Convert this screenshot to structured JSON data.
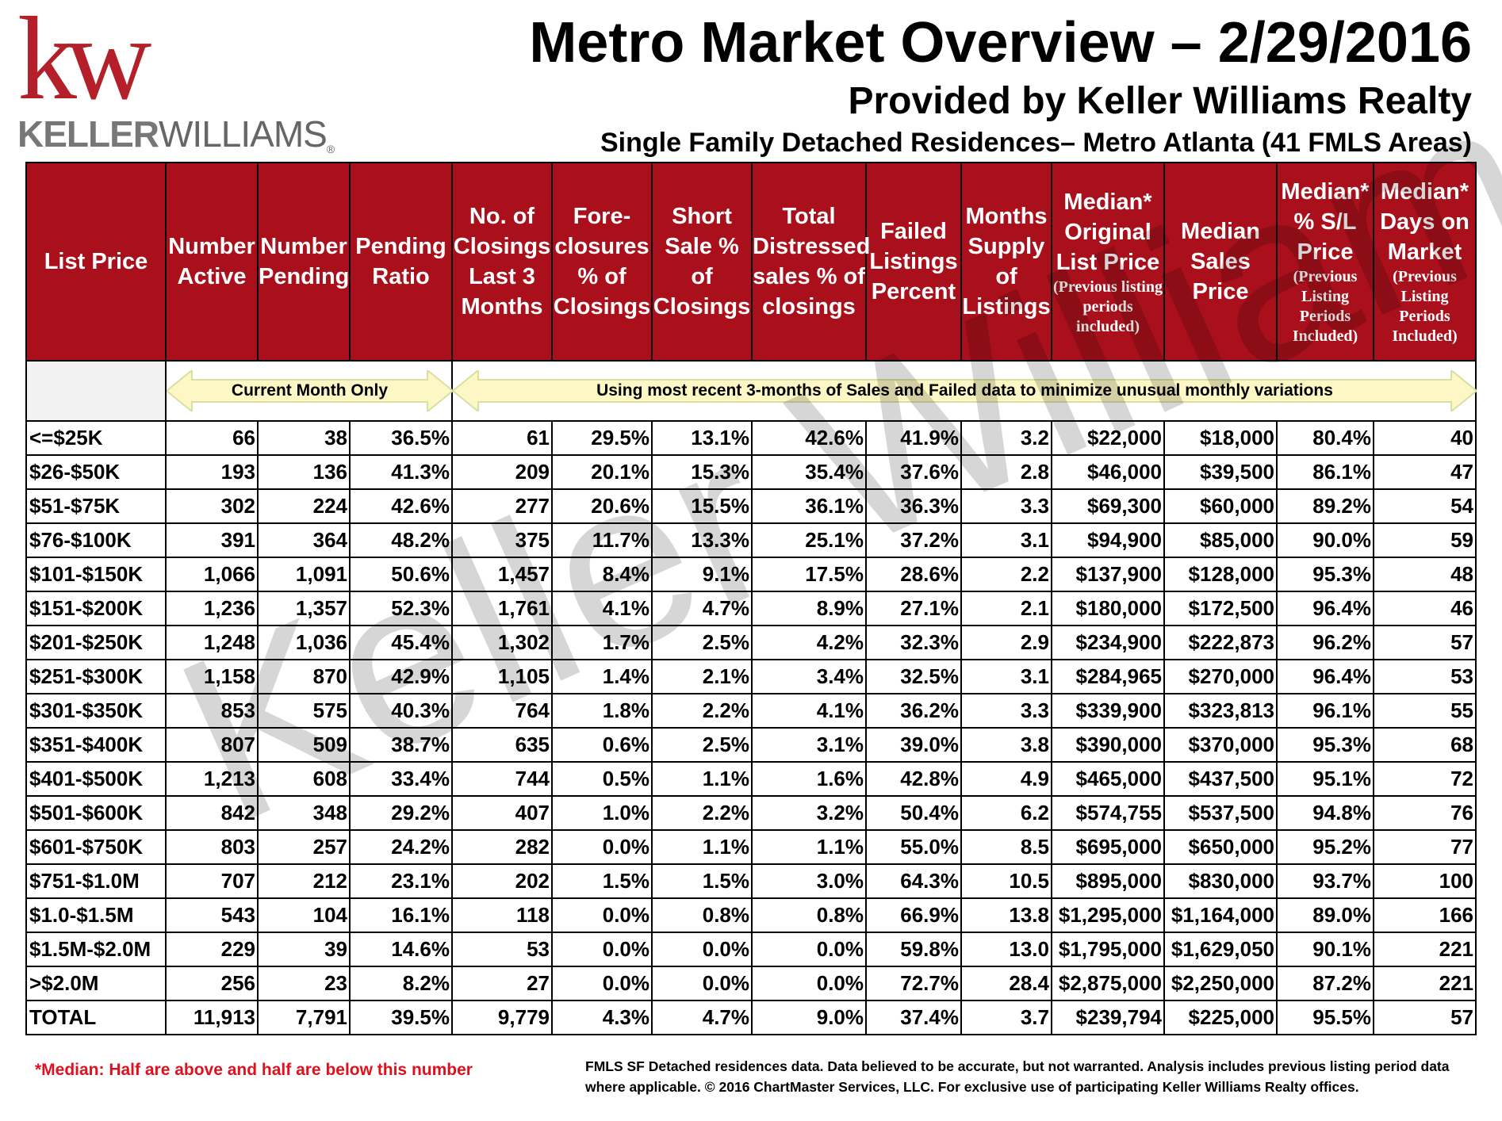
{
  "logo": {
    "mark": "kw",
    "name_bold": "KELLER",
    "name_light": "WILLIAMS",
    "registered": "®"
  },
  "header": {
    "title": "Metro Market Overview – 2/29/2016",
    "subtitle": "Provided by Keller Williams Realty",
    "subtitle2": "Single Family Detached Residences– Metro Atlanta (41 FMLS Areas)"
  },
  "columns": [
    {
      "label": "List Price",
      "note": ""
    },
    {
      "label": "Number Active",
      "note": ""
    },
    {
      "label": "Number Pending",
      "note": ""
    },
    {
      "label": "Pending Ratio",
      "note": ""
    },
    {
      "label": "No. of Closings Last 3 Months",
      "note": ""
    },
    {
      "label": "Fore-closures % of Closings",
      "note": ""
    },
    {
      "label": "Short Sale % of Closings",
      "note": ""
    },
    {
      "label": "Total Distressed sales % of closings",
      "note": ""
    },
    {
      "label": "Failed Listings Percent",
      "note": ""
    },
    {
      "label": "Months Supply of Listings",
      "note": ""
    },
    {
      "label": "Median* Original List Price",
      "note": "(Previous listing periods included)"
    },
    {
      "label": "Median Sales Price",
      "note": ""
    },
    {
      "label": "Median* % S/L Price",
      "note": "(Previous Listing Periods Included)"
    },
    {
      "label": "Median* Days on Market",
      "note": "(Previous Listing Periods Included)"
    }
  ],
  "bands": {
    "current": "Current Month Only",
    "recent": "Using most recent 3-months of Sales and Failed data to minimize unusual monthly variations"
  },
  "rows": [
    [
      "<=$25K",
      "66",
      "38",
      "36.5%",
      "61",
      "29.5%",
      "13.1%",
      "42.6%",
      "41.9%",
      "3.2",
      "$22,000",
      "$18,000",
      "80.4%",
      "40"
    ],
    [
      "$26-$50K",
      "193",
      "136",
      "41.3%",
      "209",
      "20.1%",
      "15.3%",
      "35.4%",
      "37.6%",
      "2.8",
      "$46,000",
      "$39,500",
      "86.1%",
      "47"
    ],
    [
      "$51-$75K",
      "302",
      "224",
      "42.6%",
      "277",
      "20.6%",
      "15.5%",
      "36.1%",
      "36.3%",
      "3.3",
      "$69,300",
      "$60,000",
      "89.2%",
      "54"
    ],
    [
      "$76-$100K",
      "391",
      "364",
      "48.2%",
      "375",
      "11.7%",
      "13.3%",
      "25.1%",
      "37.2%",
      "3.1",
      "$94,900",
      "$85,000",
      "90.0%",
      "59"
    ],
    [
      "$101-$150K",
      "1,066",
      "1,091",
      "50.6%",
      "1,457",
      "8.4%",
      "9.1%",
      "17.5%",
      "28.6%",
      "2.2",
      "$137,900",
      "$128,000",
      "95.3%",
      "48"
    ],
    [
      "$151-$200K",
      "1,236",
      "1,357",
      "52.3%",
      "1,761",
      "4.1%",
      "4.7%",
      "8.9%",
      "27.1%",
      "2.1",
      "$180,000",
      "$172,500",
      "96.4%",
      "46"
    ],
    [
      "$201-$250K",
      "1,248",
      "1,036",
      "45.4%",
      "1,302",
      "1.7%",
      "2.5%",
      "4.2%",
      "32.3%",
      "2.9",
      "$234,900",
      "$222,873",
      "96.2%",
      "57"
    ],
    [
      "$251-$300K",
      "1,158",
      "870",
      "42.9%",
      "1,105",
      "1.4%",
      "2.1%",
      "3.4%",
      "32.5%",
      "3.1",
      "$284,965",
      "$270,000",
      "96.4%",
      "53"
    ],
    [
      "$301-$350K",
      "853",
      "575",
      "40.3%",
      "764",
      "1.8%",
      "2.2%",
      "4.1%",
      "36.2%",
      "3.3",
      "$339,900",
      "$323,813",
      "96.1%",
      "55"
    ],
    [
      "$351-$400K",
      "807",
      "509",
      "38.7%",
      "635",
      "0.6%",
      "2.5%",
      "3.1%",
      "39.0%",
      "3.8",
      "$390,000",
      "$370,000",
      "95.3%",
      "68"
    ],
    [
      "$401-$500K",
      "1,213",
      "608",
      "33.4%",
      "744",
      "0.5%",
      "1.1%",
      "1.6%",
      "42.8%",
      "4.9",
      "$465,000",
      "$437,500",
      "95.1%",
      "72"
    ],
    [
      "$501-$600K",
      "842",
      "348",
      "29.2%",
      "407",
      "1.0%",
      "2.2%",
      "3.2%",
      "50.4%",
      "6.2",
      "$574,755",
      "$537,500",
      "94.8%",
      "76"
    ],
    [
      "$601-$750K",
      "803",
      "257",
      "24.2%",
      "282",
      "0.0%",
      "1.1%",
      "1.1%",
      "55.0%",
      "8.5",
      "$695,000",
      "$650,000",
      "95.2%",
      "77"
    ],
    [
      "$751-$1.0M",
      "707",
      "212",
      "23.1%",
      "202",
      "1.5%",
      "1.5%",
      "3.0%",
      "64.3%",
      "10.5",
      "$895,000",
      "$830,000",
      "93.7%",
      "100"
    ],
    [
      "$1.0-$1.5M",
      "543",
      "104",
      "16.1%",
      "118",
      "0.0%",
      "0.8%",
      "0.8%",
      "66.9%",
      "13.8",
      "$1,295,000",
      "$1,164,000",
      "89.0%",
      "166"
    ],
    [
      "$1.5M-$2.0M",
      "229",
      "39",
      "14.6%",
      "53",
      "0.0%",
      "0.0%",
      "0.0%",
      "59.8%",
      "13.0",
      "$1,795,000",
      "$1,629,050",
      "90.1%",
      "221"
    ],
    [
      ">$2.0M",
      "256",
      "23",
      "8.2%",
      "27",
      "0.0%",
      "0.0%",
      "0.0%",
      "72.7%",
      "28.4",
      "$2,875,000",
      "$2,250,000",
      "87.2%",
      "221"
    ],
    [
      "TOTAL",
      "11,913",
      "7,791",
      "39.5%",
      "9,779",
      "4.3%",
      "4.7%",
      "9.0%",
      "37.4%",
      "3.7",
      "$239,794",
      "$225,000",
      "95.5%",
      "57"
    ]
  ],
  "watermark": "Keller Williams",
  "footer": {
    "note": "*Median: Half are above and half are below this number",
    "disclaimer": "FMLS SF Detached residences data.  Data believed to be accurate, but not warranted.    Analysis includes previous listing period data where applicable.  © 2016 ChartMaster Services, LLC.  For exclusive use of participating Keller Williams Realty offices."
  },
  "colors": {
    "header_bg": "#a9101b",
    "logo_red": "#b41f2a",
    "note_red": "#e0111e",
    "band_fill": "#fcf7c4",
    "band_border": "#d8dfa0"
  }
}
